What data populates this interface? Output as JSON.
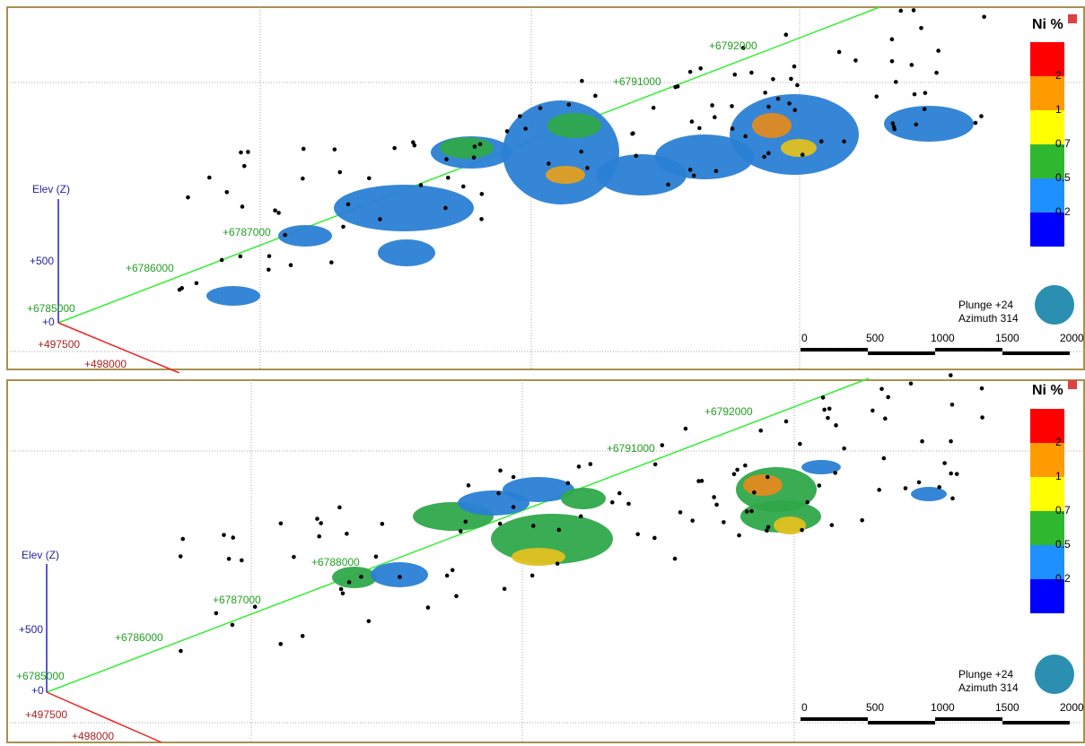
{
  "panels": [
    {
      "legend": {
        "title": "Ni %",
        "labels": [
          "2",
          "1",
          "0.7",
          "0.5",
          "0.2"
        ]
      },
      "elev_label": "Elev (Z)",
      "elev_ticks": [
        "+500",
        "+0"
      ],
      "north_ticks": [
        "+6785000",
        "+6786000",
        "+6787000",
        "+6791000",
        "+6792000"
      ],
      "east_ticks": [
        "+497500",
        "+498000"
      ],
      "view": [
        "Plunge +24",
        "Azimuth 314"
      ],
      "scale_labels": [
        "0",
        "500",
        "1000",
        "1500",
        "2000"
      ]
    },
    {
      "legend": {
        "title": "Ni %",
        "labels": [
          "2",
          "1",
          "0.7",
          "0.5",
          "0.2"
        ]
      },
      "elev_label": "Elev (Z)",
      "elev_ticks": [
        "+500",
        "+0"
      ],
      "north_ticks": [
        "+6785000",
        "+6786000",
        "+6787000",
        "+6788000",
        "+6791000",
        "+6792000"
      ],
      "east_ticks": [
        "+497500",
        "+498000"
      ],
      "view": [
        "Plunge +24",
        "Azimuth 314"
      ],
      "scale_labels": [
        "0",
        "500",
        "1000",
        "1500",
        "2000"
      ]
    }
  ]
}
